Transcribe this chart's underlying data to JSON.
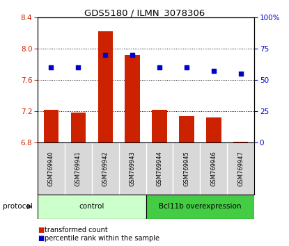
{
  "title": "GDS5180 / ILMN_3078306",
  "samples": [
    "GSM769940",
    "GSM769941",
    "GSM769942",
    "GSM769943",
    "GSM769944",
    "GSM769945",
    "GSM769946",
    "GSM769947"
  ],
  "transformed_counts": [
    7.22,
    7.18,
    8.22,
    7.92,
    7.22,
    7.14,
    7.12,
    6.81
  ],
  "percentile_ranks": [
    60,
    60,
    70,
    70,
    60,
    60,
    57,
    55
  ],
  "bar_bottom": 6.8,
  "ylim_left": [
    6.8,
    8.4
  ],
  "ylim_right": [
    0,
    100
  ],
  "yticks_left": [
    6.8,
    7.2,
    7.6,
    8.0,
    8.4
  ],
  "yticks_right": [
    0,
    25,
    50,
    75,
    100
  ],
  "bar_color": "#cc2200",
  "dot_color": "#0000cc",
  "group_labels": [
    "control",
    "Bcl11b overexpression"
  ],
  "group_ranges": [
    [
      0,
      3
    ],
    [
      4,
      7
    ]
  ],
  "group_colors_light": "#ccffcc",
  "group_colors_dark": "#44cc44",
  "legend_bar_label": "transformed count",
  "legend_dot_label": "percentile rank within the sample",
  "protocol_label": "protocol",
  "label_bg_color": "#d8d8d8",
  "plot_bg_color": "#ffffff"
}
